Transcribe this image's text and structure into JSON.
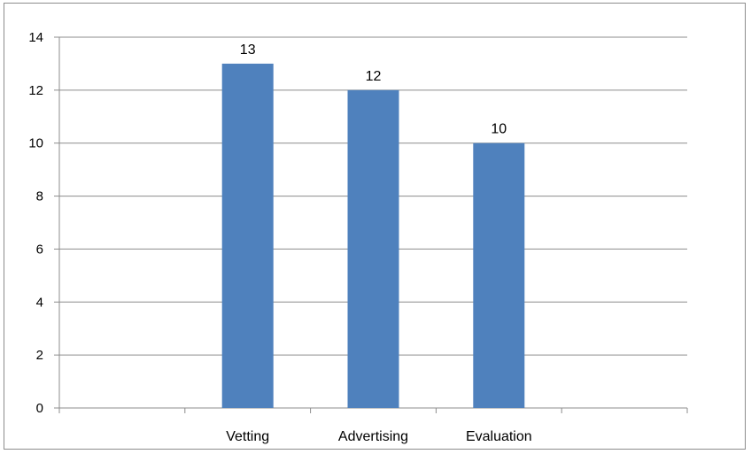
{
  "chart_data": {
    "type": "bar",
    "title": "",
    "xlabel": "",
    "ylabel": "",
    "slots": [
      "",
      "Vetting",
      "Advertising",
      "Evaluation",
      ""
    ],
    "categories": [
      "Vetting",
      "Advertising",
      "Evaluation"
    ],
    "values": [
      13,
      12,
      10
    ],
    "data_labels": [
      "13",
      "12",
      "10"
    ],
    "y_ticks": [
      0,
      2,
      4,
      6,
      8,
      10,
      12,
      14
    ],
    "ylim": [
      0,
      14
    ],
    "grid": true,
    "legend": "none",
    "bar_color": "#4F81BD",
    "grid_color": "#8C8C8C"
  }
}
